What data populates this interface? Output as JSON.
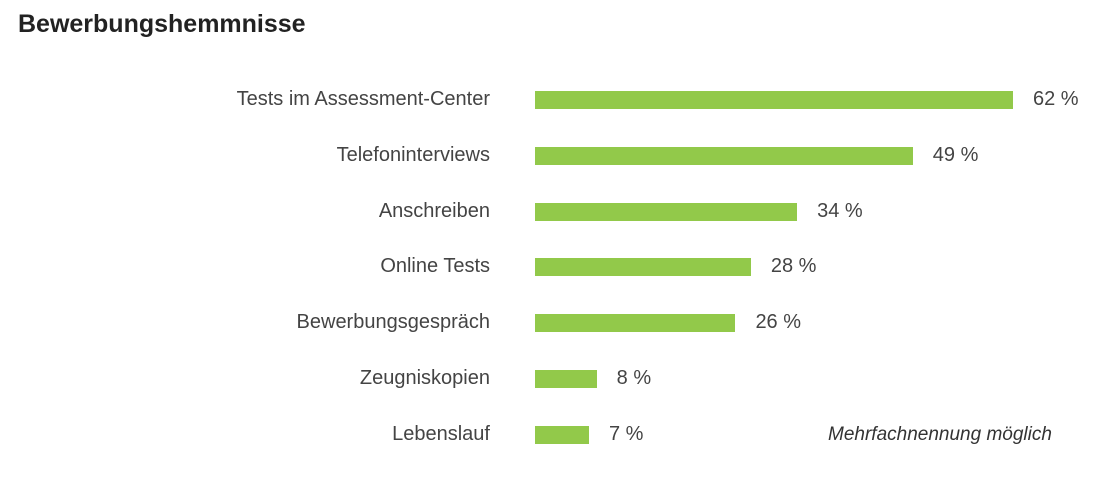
{
  "chart_data": {
    "type": "bar",
    "orientation": "horizontal",
    "title": "Bewerbungshemmnisse",
    "categories": [
      "Tests im Assessment-Center",
      "Telefoninterviews",
      "Anschreiben",
      "Online Tests",
      "Bewerbungsgespräch",
      "Zeugniskopien",
      "Lebenslauf"
    ],
    "values": [
      62,
      49,
      34,
      28,
      26,
      8,
      7
    ],
    "value_labels": [
      "62 %",
      "49 %",
      "34 %",
      "28 %",
      "26 %",
      "8 %",
      "7 %"
    ],
    "unit": "%",
    "annotation": "Mehrfachnennung möglich",
    "bar_color": "#92c94a",
    "grid": false,
    "xlabel": "",
    "ylabel": ""
  }
}
